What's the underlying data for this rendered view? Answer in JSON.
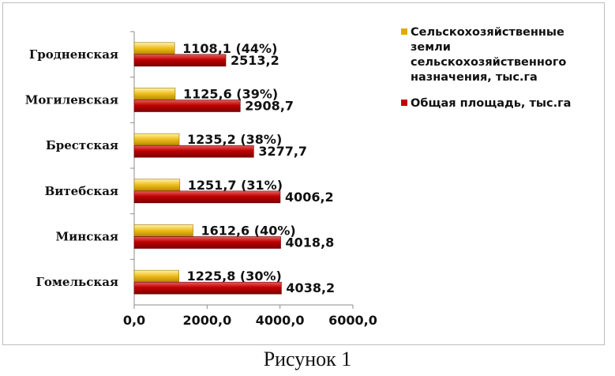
{
  "chart_data": {
    "type": "bar",
    "orientation": "horizontal",
    "categories": [
      "Гродненская",
      "Могилевская",
      "Брестская",
      "Витебская",
      "Минская",
      "Гомельская"
    ],
    "series": [
      {
        "name": "Сельскохозяйственные земли сельскохозяйственного назначения, тыс.га",
        "legend_lines": [
          "Сельскохозяйственные",
          "земли",
          "сельскохозяйственного",
          "назначения, тыс.га"
        ],
        "color": "#e0ac00",
        "values": [
          1108.1,
          1125.6,
          1235.2,
          1251.7,
          1612.6,
          1225.8
        ],
        "labels": [
          "1108,1 (44%)",
          "1125,6 (39%)",
          "1235,2 (38%)",
          "1251,7 (31%)",
          "1612,6 (40%)",
          "1225,8 (30%)"
        ]
      },
      {
        "name": "Общая площадь, тыс.га",
        "legend_lines": [
          "Общая площадь, тыс.га"
        ],
        "color": "#c00000",
        "values": [
          2513.2,
          2908.7,
          3277.7,
          4006.2,
          4018.8,
          4038.2
        ],
        "labels": [
          "2513,2",
          "2908,7",
          "3277,7",
          "4006,2",
          "4018,8",
          "4038,2"
        ]
      }
    ],
    "xlim": [
      0,
      6000
    ],
    "xticks": [
      "0,0",
      "2000,0",
      "4000,0",
      "6000,0"
    ],
    "legend": "right",
    "grid": false
  },
  "caption": "Рисунок 1"
}
